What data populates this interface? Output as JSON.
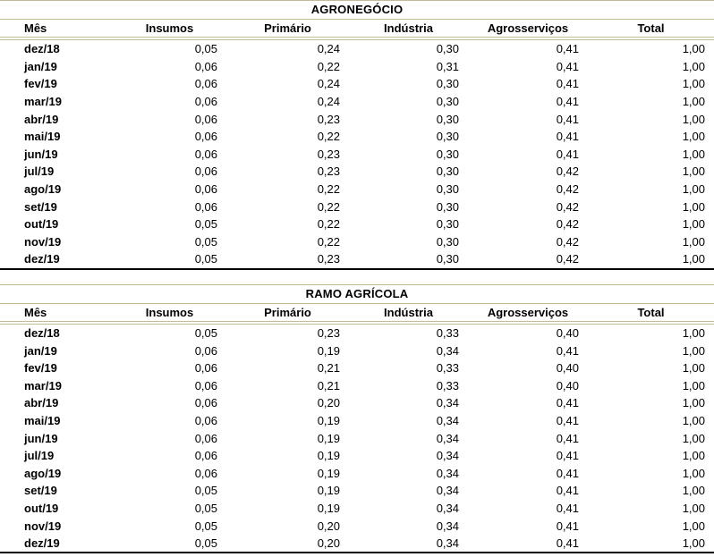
{
  "colors": {
    "accent_border": "#C2BE93",
    "strong_border": "#000000",
    "text": "#000000",
    "background": "#FFFFFF"
  },
  "chart_data": [
    {
      "type": "table",
      "title": "AGRONEGÓCIO",
      "columns": [
        "Mês",
        "Insumos",
        "Primário",
        "Indústria",
        "Agrosserviços",
        "Total"
      ],
      "rows": [
        [
          "dez/18",
          "0,05",
          "0,24",
          "0,30",
          "0,41",
          "1,00"
        ],
        [
          "jan/19",
          "0,06",
          "0,22",
          "0,31",
          "0,41",
          "1,00"
        ],
        [
          "fev/19",
          "0,06",
          "0,24",
          "0,30",
          "0,41",
          "1,00"
        ],
        [
          "mar/19",
          "0,06",
          "0,24",
          "0,30",
          "0,41",
          "1,00"
        ],
        [
          "abr/19",
          "0,06",
          "0,23",
          "0,30",
          "0,41",
          "1,00"
        ],
        [
          "mai/19",
          "0,06",
          "0,22",
          "0,30",
          "0,41",
          "1,00"
        ],
        [
          "jun/19",
          "0,06",
          "0,23",
          "0,30",
          "0,41",
          "1,00"
        ],
        [
          "jul/19",
          "0,06",
          "0,23",
          "0,30",
          "0,42",
          "1,00"
        ],
        [
          "ago/19",
          "0,06",
          "0,22",
          "0,30",
          "0,42",
          "1,00"
        ],
        [
          "set/19",
          "0,06",
          "0,22",
          "0,30",
          "0,42",
          "1,00"
        ],
        [
          "out/19",
          "0,05",
          "0,22",
          "0,30",
          "0,42",
          "1,00"
        ],
        [
          "nov/19",
          "0,05",
          "0,22",
          "0,30",
          "0,42",
          "1,00"
        ],
        [
          "dez/19",
          "0,05",
          "0,23",
          "0,30",
          "0,42",
          "1,00"
        ]
      ]
    },
    {
      "type": "table",
      "title": "RAMO AGRÍCOLA",
      "columns": [
        "Mês",
        "Insumos",
        "Primário",
        "Indústria",
        "Agrosserviços",
        "Total"
      ],
      "rows": [
        [
          "dez/18",
          "0,05",
          "0,23",
          "0,33",
          "0,40",
          "1,00"
        ],
        [
          "jan/19",
          "0,06",
          "0,19",
          "0,34",
          "0,41",
          "1,00"
        ],
        [
          "fev/19",
          "0,06",
          "0,21",
          "0,33",
          "0,40",
          "1,00"
        ],
        [
          "mar/19",
          "0,06",
          "0,21",
          "0,33",
          "0,40",
          "1,00"
        ],
        [
          "abr/19",
          "0,06",
          "0,20",
          "0,34",
          "0,41",
          "1,00"
        ],
        [
          "mai/19",
          "0,06",
          "0,19",
          "0,34",
          "0,41",
          "1,00"
        ],
        [
          "jun/19",
          "0,06",
          "0,19",
          "0,34",
          "0,41",
          "1,00"
        ],
        [
          "jul/19",
          "0,06",
          "0,19",
          "0,34",
          "0,41",
          "1,00"
        ],
        [
          "ago/19",
          "0,06",
          "0,19",
          "0,34",
          "0,41",
          "1,00"
        ],
        [
          "set/19",
          "0,05",
          "0,19",
          "0,34",
          "0,41",
          "1,00"
        ],
        [
          "out/19",
          "0,05",
          "0,19",
          "0,34",
          "0,41",
          "1,00"
        ],
        [
          "nov/19",
          "0,05",
          "0,20",
          "0,34",
          "0,41",
          "1,00"
        ],
        [
          "dez/19",
          "0,05",
          "0,20",
          "0,34",
          "0,41",
          "1,00"
        ]
      ]
    }
  ]
}
